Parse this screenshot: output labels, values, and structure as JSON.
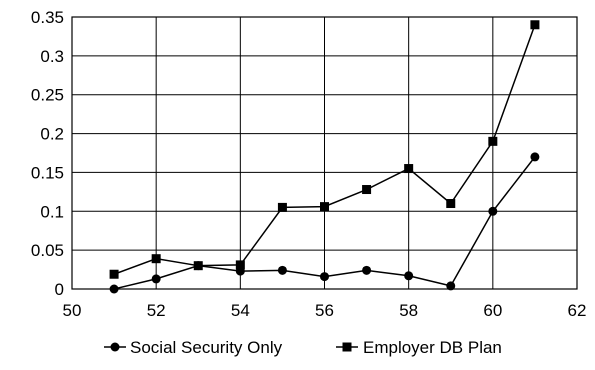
{
  "chart_data": {
    "type": "line",
    "title": "",
    "xlabel": "",
    "ylabel": "",
    "xlim": [
      50,
      62
    ],
    "ylim": [
      0,
      0.35
    ],
    "x_ticks": [
      "50",
      "52",
      "54",
      "56",
      "58",
      "60",
      "62"
    ],
    "y_ticks": [
      "0",
      "0.05",
      "0.1",
      "0.15",
      "0.2",
      "0.25",
      "0.3",
      "0.35"
    ],
    "grid": true,
    "legend_position": "bottom",
    "series": [
      {
        "name": "Social Security Only",
        "marker": "circle",
        "color": "#000000",
        "x": [
          51,
          52,
          53,
          54,
          55,
          56,
          57,
          58,
          59,
          60,
          61
        ],
        "y": [
          0.0,
          0.013,
          0.03,
          0.023,
          0.024,
          0.016,
          0.024,
          0.017,
          0.004,
          0.1,
          0.17
        ]
      },
      {
        "name": "Employer DB Plan",
        "marker": "square",
        "color": "#000000",
        "x": [
          51,
          52,
          53,
          54,
          55,
          56,
          57,
          58,
          59,
          60,
          61
        ],
        "y": [
          0.019,
          0.039,
          0.03,
          0.031,
          0.105,
          0.106,
          0.128,
          0.155,
          0.11,
          0.19,
          0.34
        ]
      }
    ]
  }
}
